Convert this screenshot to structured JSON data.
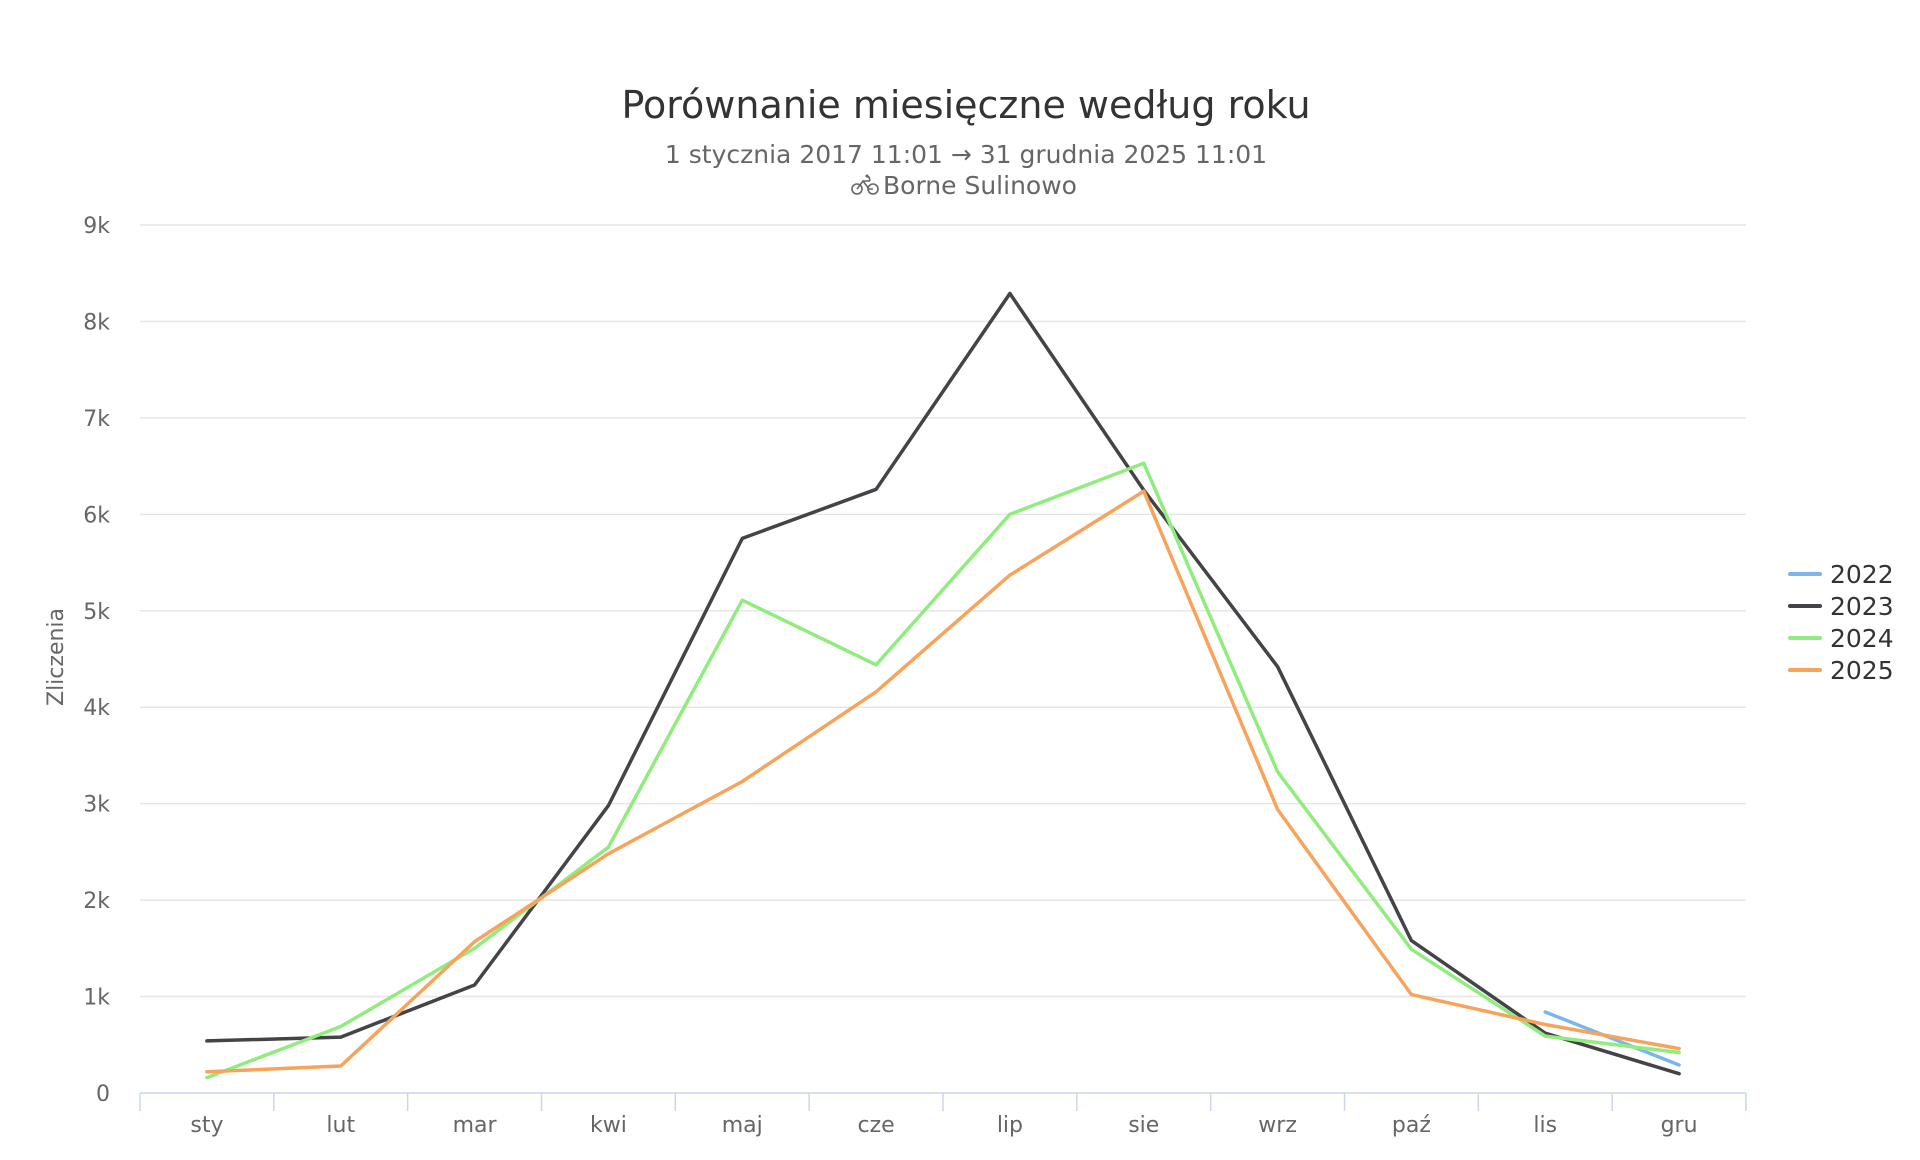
{
  "chart_data": {
    "type": "line",
    "title": "Porównanie miesięczne według roku",
    "subtitle": "1 stycznia 2017 11:01 → 31 grudnia 2025 11:01",
    "location": "Borne Sulinowo",
    "location_icon": "bicycle-icon",
    "ylabel": "Zliczenia",
    "xlabel": "",
    "categories": [
      "sty",
      "lut",
      "mar",
      "kwi",
      "maj",
      "cze",
      "lip",
      "sie",
      "wrz",
      "paź",
      "lis",
      "gru"
    ],
    "ylim": [
      0,
      9000
    ],
    "yticks": [
      {
        "value": 0,
        "label": "0"
      },
      {
        "value": 1000,
        "label": "1k"
      },
      {
        "value": 2000,
        "label": "2k"
      },
      {
        "value": 3000,
        "label": "3k"
      },
      {
        "value": 4000,
        "label": "4k"
      },
      {
        "value": 5000,
        "label": "5k"
      },
      {
        "value": 6000,
        "label": "6k"
      },
      {
        "value": 7000,
        "label": "7k"
      },
      {
        "value": 8000,
        "label": "8k"
      },
      {
        "value": 9000,
        "label": "9k"
      }
    ],
    "grid": true,
    "legend_position": "right",
    "series": [
      {
        "name": "2022",
        "color": "#7cb5ec",
        "values": [
          null,
          null,
          null,
          null,
          null,
          null,
          null,
          null,
          null,
          null,
          840,
          290
        ]
      },
      {
        "name": "2023",
        "color": "#434348",
        "values": [
          540,
          580,
          1120,
          2980,
          5750,
          6260,
          8290,
          6250,
          4420,
          1580,
          620,
          200
        ]
      },
      {
        "name": "2024",
        "color": "#90ed7d",
        "values": [
          160,
          690,
          1500,
          2550,
          5110,
          4440,
          6000,
          6530,
          3330,
          1490,
          590,
          420
        ]
      },
      {
        "name": "2025",
        "color": "#f7a35c",
        "values": [
          220,
          280,
          1570,
          2480,
          3230,
          4160,
          5370,
          6240,
          2940,
          1020,
          710,
          460
        ]
      }
    ]
  }
}
